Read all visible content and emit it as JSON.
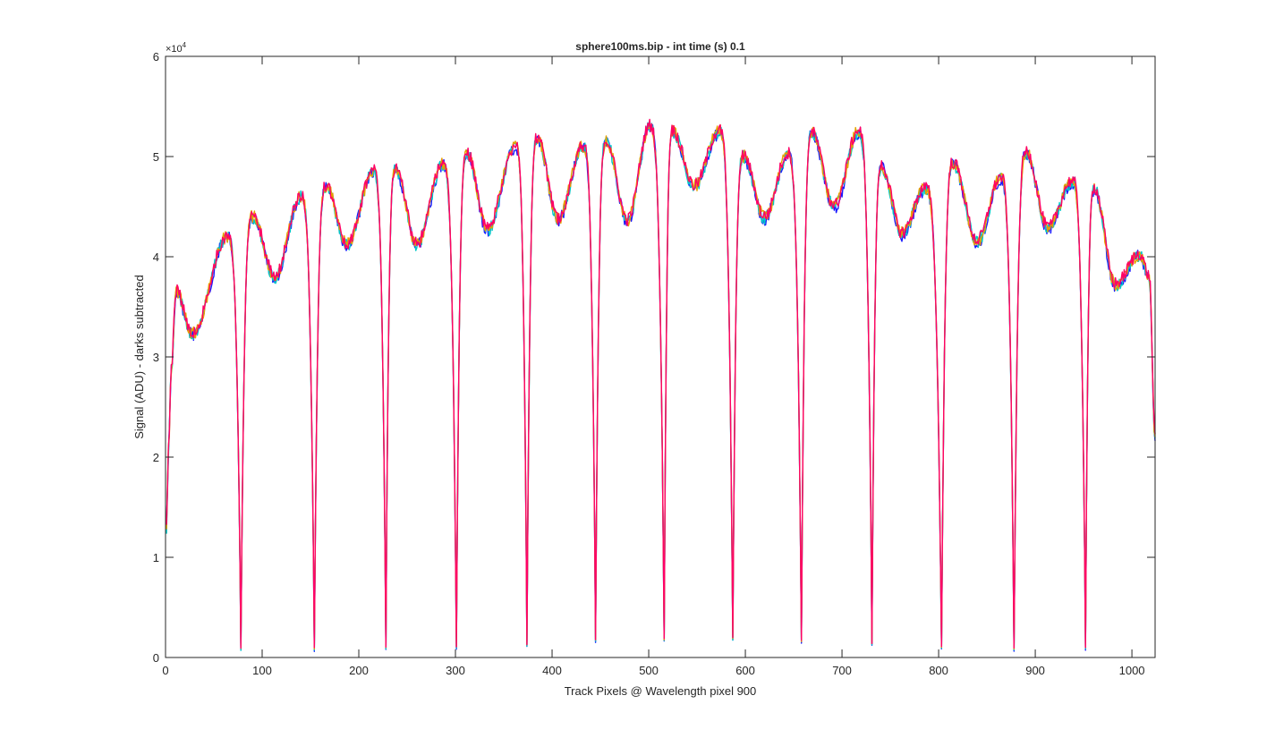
{
  "chart_data": {
    "type": "line",
    "title": "sphere100ms.bip - int time (s) 0.1",
    "xlabel": "Track Pixels @ Wavelength pixel 900",
    "ylabel": "Signal (ADU) - darks subtracted",
    "y_exponent_label": "×10",
    "y_exponent_power": "4",
    "xlim": [
      0,
      1024
    ],
    "ylim": [
      0,
      60000
    ],
    "x_ticks": [
      0,
      100,
      200,
      300,
      400,
      500,
      600,
      700,
      800,
      900,
      1000
    ],
    "x_tick_labels": [
      "0",
      "100",
      "200",
      "300",
      "400",
      "500",
      "600",
      "700",
      "800",
      "900",
      "1000"
    ],
    "y_ticks": [
      0,
      10000,
      20000,
      30000,
      40000,
      50000,
      60000
    ],
    "y_tick_labels": [
      "0",
      "1",
      "2",
      "3",
      "4",
      "5",
      "6"
    ],
    "grid": false,
    "legend": "none",
    "series_colors": [
      "#1a1aff",
      "#00c8c8",
      "#e6a000",
      "#ff0066"
    ],
    "peaks": [
      {
        "x": 11,
        "y": 36500
      },
      {
        "x": 28,
        "y": 32300
      },
      {
        "x": 64,
        "y": 42000
      },
      {
        "x": 90,
        "y": 44000
      },
      {
        "x": 113,
        "y": 38000
      },
      {
        "x": 140,
        "y": 46000
      },
      {
        "x": 166,
        "y": 47000
      },
      {
        "x": 188,
        "y": 41200
      },
      {
        "x": 215,
        "y": 48500
      },
      {
        "x": 238,
        "y": 48700
      },
      {
        "x": 260,
        "y": 41200
      },
      {
        "x": 287,
        "y": 49200
      },
      {
        "x": 312,
        "y": 50300
      },
      {
        "x": 333,
        "y": 42700
      },
      {
        "x": 362,
        "y": 51000
      },
      {
        "x": 385,
        "y": 51800
      },
      {
        "x": 406,
        "y": 43700
      },
      {
        "x": 432,
        "y": 51000
      },
      {
        "x": 456,
        "y": 51500
      },
      {
        "x": 478,
        "y": 43600
      },
      {
        "x": 501,
        "y": 53000
      },
      {
        "x": 525,
        "y": 52500
      },
      {
        "x": 547,
        "y": 47000
      },
      {
        "x": 573,
        "y": 52500
      },
      {
        "x": 598,
        "y": 50000
      },
      {
        "x": 620,
        "y": 43900
      },
      {
        "x": 644,
        "y": 50200
      },
      {
        "x": 669,
        "y": 52300
      },
      {
        "x": 692,
        "y": 45000
      },
      {
        "x": 717,
        "y": 52500
      },
      {
        "x": 741,
        "y": 49000
      },
      {
        "x": 762,
        "y": 42300
      },
      {
        "x": 786,
        "y": 46800
      },
      {
        "x": 815,
        "y": 49300
      },
      {
        "x": 840,
        "y": 41500
      },
      {
        "x": 864,
        "y": 47800
      },
      {
        "x": 891,
        "y": 50400
      },
      {
        "x": 913,
        "y": 42800
      },
      {
        "x": 938,
        "y": 47500
      },
      {
        "x": 961,
        "y": 46800
      },
      {
        "x": 983,
        "y": 37200
      },
      {
        "x": 1008,
        "y": 40200
      }
    ],
    "dips": [
      {
        "x": 78,
        "y": 800
      },
      {
        "x": 154,
        "y": 800
      },
      {
        "x": 228,
        "y": 900
      },
      {
        "x": 301,
        "y": 1000
      },
      {
        "x": 374,
        "y": 1200
      },
      {
        "x": 445,
        "y": 1700
      },
      {
        "x": 516,
        "y": 1800
      },
      {
        "x": 587,
        "y": 1800
      },
      {
        "x": 658,
        "y": 1600
      },
      {
        "x": 731,
        "y": 1300
      },
      {
        "x": 803,
        "y": 1000
      },
      {
        "x": 878,
        "y": 800
      },
      {
        "x": 952,
        "y": 900
      }
    ],
    "start_point": {
      "x": 1,
      "y": 12800
    },
    "end_point": {
      "x": 1024,
      "y": 22000
    }
  }
}
